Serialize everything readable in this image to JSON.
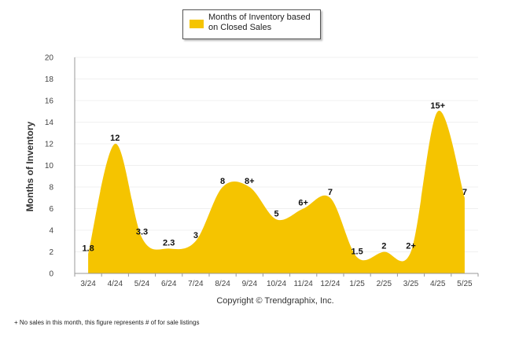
{
  "colors": {
    "area": "#F5C400",
    "axis": "#999999",
    "grid": "#f0f0f0"
  },
  "legend": {
    "label": "Months of Inventory based on Closed Sales"
  },
  "copyright": "Copyright © Trendgraphix, Inc.",
  "footnote": "+ No sales in this month, this figure represents # of for sale listings",
  "chart_data": {
    "type": "area",
    "categories": [
      "3/24",
      "4/24",
      "5/24",
      "6/24",
      "7/24",
      "8/24",
      "9/24",
      "10/24",
      "11/24",
      "12/24",
      "1/25",
      "2/25",
      "3/25",
      "4/25",
      "5/25"
    ],
    "series": [
      {
        "name": "Months of Inventory based on Closed Sales",
        "values": [
          1.8,
          12,
          3.3,
          2.3,
          3,
          8,
          8,
          5,
          6,
          7,
          1.5,
          2,
          2,
          15,
          7
        ],
        "labels": [
          "1.8",
          "12",
          "3.3",
          "2.3",
          "3",
          "8",
          "8+",
          "5",
          "6+",
          "7",
          "1.5",
          "2",
          "2+",
          "15+",
          "7"
        ]
      }
    ],
    "ylabel": "Months of Inventory",
    "ylim": [
      0,
      20
    ],
    "yticks": [
      0,
      2,
      4,
      6,
      8,
      10,
      12,
      14,
      16,
      18,
      20
    ],
    "grid": true,
    "legend_position": "top"
  }
}
